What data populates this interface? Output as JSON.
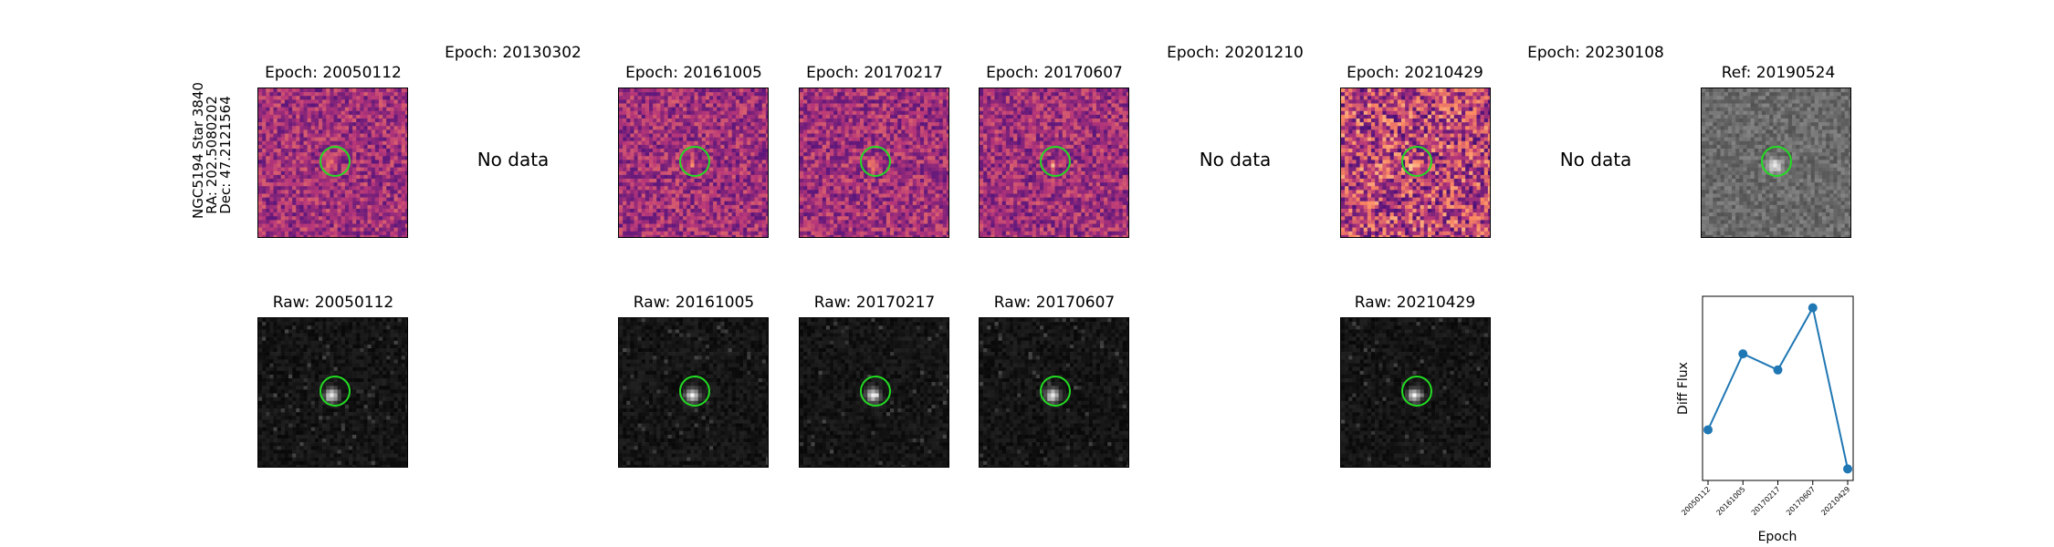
{
  "star_label": {
    "line1": "NGC5194 Star 3840",
    "line2": "RA: 202.5080202",
    "line3": "Dec: 47.2121564"
  },
  "no_data_text": "No data",
  "diff_panels": [
    {
      "title": "Epoch: 20050112",
      "has_data": true
    },
    {
      "title": "Epoch: 20130302",
      "has_data": false
    },
    {
      "title": "Epoch: 20161005",
      "has_data": true
    },
    {
      "title": "Epoch: 20170217",
      "has_data": true
    },
    {
      "title": "Epoch: 20170607",
      "has_data": true
    },
    {
      "title": "Epoch: 20201210",
      "has_data": false
    },
    {
      "title": "Epoch: 20210429",
      "has_data": true
    },
    {
      "title": "Epoch: 20230108",
      "has_data": false
    },
    {
      "title": "Ref: 20190524",
      "has_data": true
    }
  ],
  "raw_panels": [
    {
      "title": "Raw: 20050112"
    },
    {
      "title": "Raw: 20161005"
    },
    {
      "title": "Raw: 20170217"
    },
    {
      "title": "Raw: 20170607"
    },
    {
      "title": "Raw: 20210429"
    }
  ],
  "colors": {
    "circle": "#22dd22",
    "line": "#1f77b4"
  },
  "chart_data": {
    "type": "line",
    "categories": [
      "20050112",
      "20161005",
      "20170217",
      "20170607",
      "20210429"
    ],
    "values": [
      0.32,
      0.65,
      0.58,
      0.85,
      0.15
    ],
    "xlabel": "Epoch",
    "ylabel": "Diff Flux",
    "ylim": [
      0.1,
      0.9
    ],
    "grid": false
  }
}
